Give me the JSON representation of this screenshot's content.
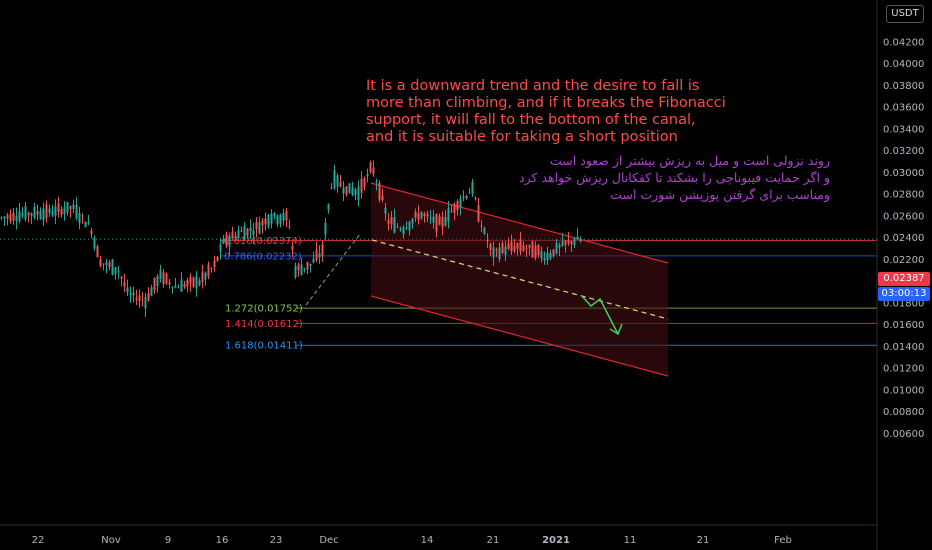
{
  "currency_button": "USDT",
  "annotation_en": "It is a downward trend and the desire to fall is\nmore than climbing, and if it breaks the Fibonacci\nsupport, it will fall to the bottom of the canal,\nand it is suitable for taking a short position",
  "annotation_fa": "روند نزولی است و میل به ریزش بیشتر از صعود است\nو اگر حمایت فیبوناچی را بشکند تا کفکانال ریزش خواهد کرد\nومناسب برای گرفتن پوزیشن شورت است",
  "price_tag": {
    "price": "0.02387",
    "countdown": "03:00:13",
    "color_price": "#f23645",
    "color_time": "#2962ff"
  },
  "colors": {
    "up": "#26a69a",
    "down": "#ef5350",
    "channel": "#e5232f",
    "trend_dash": "#e8d67a",
    "arrow": "#3fcf5f"
  },
  "chart_data": {
    "type": "candlestick",
    "y_ticks": [
      "0.04200",
      "0.04000",
      "0.03800",
      "0.03600",
      "0.03400",
      "0.03200",
      "0.03000",
      "0.02800",
      "0.02600",
      "0.02400",
      "0.02200",
      "0.02000",
      "0.01800",
      "0.01600",
      "0.01400",
      "0.01200",
      "0.01000",
      "0.00800",
      "0.00600"
    ],
    "x_ticks": [
      "22",
      "Nov",
      "9",
      "16",
      "23",
      "Dec",
      "14",
      "21",
      "2021",
      "11",
      "21",
      "Feb"
    ],
    "ylim": [
      0.0052,
      0.0445
    ],
    "fib_levels": [
      {
        "label": "0.618(0.02374)",
        "value": 0.02374,
        "color": "#f23645"
      },
      {
        "label": "0.786(0.02232)",
        "value": 0.02232,
        "color": "#2962ff"
      },
      {
        "label": "1.272(0.01752)",
        "value": 0.01752,
        "color": "#8bc34a"
      },
      {
        "label": "1.414(0.01612)",
        "value": 0.01612,
        "color": "#f23645"
      },
      {
        "label": "1.618(0.01411)",
        "value": 0.01411,
        "color": "#2196f3"
      }
    ],
    "last_price": 0.02387
  }
}
